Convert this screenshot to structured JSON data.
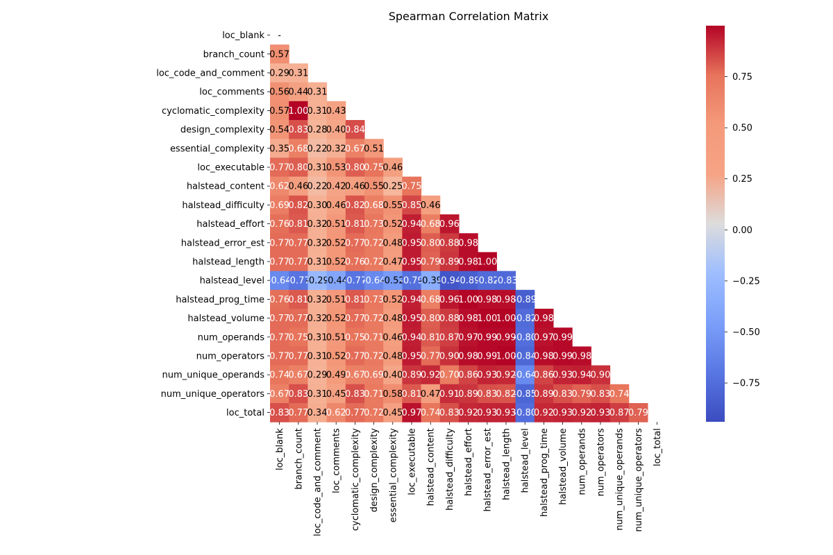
{
  "chart_data": {
    "type": "heatmap",
    "title": "Spearman Correlation Matrix",
    "xlabel": "",
    "ylabel": "",
    "variables": [
      "loc_blank",
      "branch_count",
      "loc_code_and_comment",
      "loc_comments",
      "cyclomatic_complexity",
      "design_complexity",
      "essential_complexity",
      "loc_executable",
      "halstead_content",
      "halstead_difficulty",
      "halstead_effort",
      "halstead_error_est",
      "halstead_length",
      "halstead_level",
      "halstead_prog_time",
      "halstead_volume",
      "num_operands",
      "num_operators",
      "num_unique_operands",
      "num_unique_operators",
      "loc_total"
    ],
    "lower_triangle": [
      [],
      [
        0.57
      ],
      [
        0.29,
        0.31
      ],
      [
        0.56,
        0.44,
        0.31
      ],
      [
        0.57,
        1.0,
        0.31,
        0.43
      ],
      [
        0.54,
        0.83,
        0.28,
        0.4,
        0.84
      ],
      [
        0.35,
        0.68,
        0.22,
        0.32,
        0.67,
        0.51
      ],
      [
        0.77,
        0.8,
        0.31,
        0.53,
        0.8,
        0.75,
        0.46
      ],
      [
        0.62,
        0.46,
        0.22,
        0.42,
        0.46,
        0.55,
        0.25,
        0.75
      ],
      [
        0.69,
        0.82,
        0.3,
        0.46,
        0.82,
        0.68,
        0.55,
        0.85,
        0.46
      ],
      [
        0.76,
        0.81,
        0.32,
        0.51,
        0.81,
        0.73,
        0.52,
        0.94,
        0.68,
        0.96
      ],
      [
        0.77,
        0.77,
        0.32,
        0.52,
        0.77,
        0.72,
        0.48,
        0.95,
        0.8,
        0.88,
        0.98
      ],
      [
        0.77,
        0.77,
        0.31,
        0.52,
        0.76,
        0.72,
        0.47,
        0.95,
        0.79,
        0.89,
        0.98,
        1.0
      ],
      [
        -0.64,
        -0.77,
        -0.29,
        -0.44,
        -0.77,
        -0.64,
        -0.52,
        -0.79,
        -0.39,
        -0.94,
        -0.89,
        -0.82,
        -0.83
      ],
      [
        0.76,
        0.81,
        0.32,
        0.51,
        0.81,
        0.73,
        0.52,
        0.94,
        0.68,
        0.96,
        1.0,
        0.98,
        0.98,
        -0.89
      ],
      [
        0.77,
        0.77,
        0.32,
        0.52,
        0.77,
        0.72,
        0.48,
        0.95,
        0.8,
        0.88,
        0.98,
        1.0,
        1.0,
        -0.82,
        0.98
      ],
      [
        0.77,
        0.75,
        0.31,
        0.51,
        0.75,
        0.71,
        0.46,
        0.94,
        0.81,
        0.87,
        0.97,
        0.99,
        0.99,
        -0.8,
        0.97,
        0.99
      ],
      [
        0.77,
        0.77,
        0.31,
        0.52,
        0.77,
        0.72,
        0.48,
        0.95,
        0.77,
        0.9,
        0.98,
        0.99,
        1.0,
        -0.84,
        0.98,
        0.99,
        0.98
      ],
      [
        0.74,
        0.67,
        0.29,
        0.49,
        0.67,
        0.69,
        0.4,
        0.89,
        0.92,
        0.7,
        0.86,
        0.93,
        0.92,
        -0.64,
        0.86,
        0.93,
        0.94,
        0.9
      ],
      [
        0.67,
        0.83,
        0.31,
        0.45,
        0.83,
        0.71,
        0.58,
        0.81,
        0.47,
        0.91,
        0.89,
        0.83,
        0.82,
        -0.85,
        0.89,
        0.83,
        0.79,
        0.83,
        0.74
      ],
      [
        0.83,
        0.77,
        0.34,
        0.62,
        0.77,
        0.72,
        0.45,
        0.97,
        0.74,
        0.83,
        0.92,
        0.93,
        0.93,
        -0.8,
        0.92,
        0.93,
        0.92,
        0.93,
        0.87,
        0.79
      ]
    ],
    "diagonal_label": "-",
    "colormap": "coolwarm",
    "vmin": -0.94,
    "vmax": 1.0,
    "colorbar_ticks": [
      "0.75",
      "0.50",
      "0.25",
      "0.00",
      "−0.25",
      "−0.50",
      "−0.75"
    ],
    "colorbar_tick_values": [
      0.75,
      0.5,
      0.25,
      0.0,
      -0.25,
      -0.5,
      -0.75
    ]
  }
}
